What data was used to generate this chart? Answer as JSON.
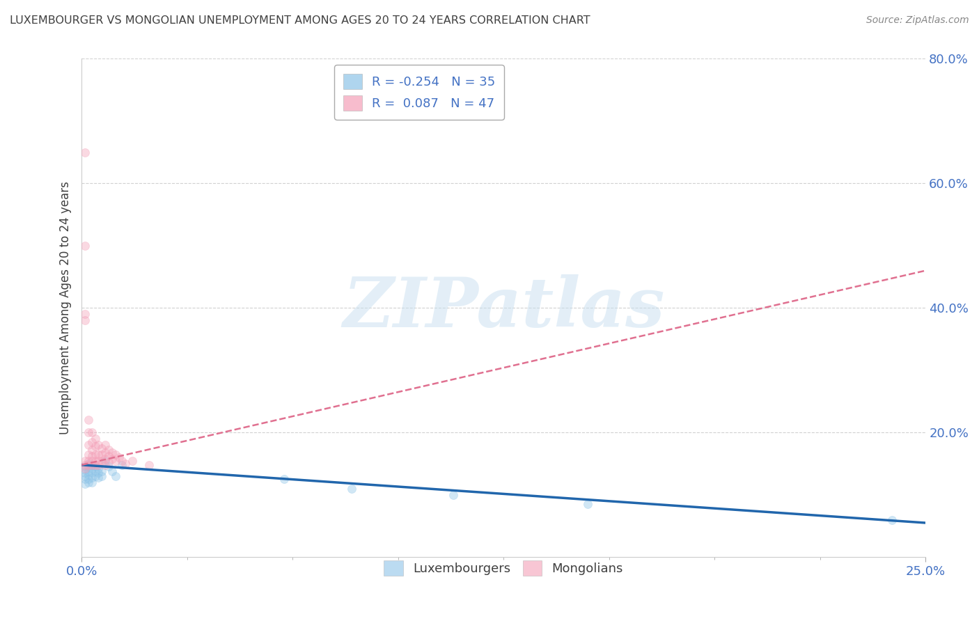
{
  "title": "LUXEMBOURGER VS MONGOLIAN UNEMPLOYMENT AMONG AGES 20 TO 24 YEARS CORRELATION CHART",
  "source": "Source: ZipAtlas.com",
  "ylabel_label": "Unemployment Among Ages 20 to 24 years",
  "legend_entries": [
    {
      "label": "R = -0.254   N = 35",
      "color": "#6baed6"
    },
    {
      "label": "R =  0.087   N = 47",
      "color": "#f768a1"
    }
  ],
  "legend_bottom": [
    "Luxembourgers",
    "Mongolians"
  ],
  "xlim": [
    0.0,
    0.25
  ],
  "ylim": [
    0.0,
    0.8
  ],
  "lux_scatter_x": [
    0.001,
    0.001,
    0.001,
    0.001,
    0.001,
    0.001,
    0.002,
    0.002,
    0.002,
    0.002,
    0.002,
    0.002,
    0.003,
    0.003,
    0.003,
    0.003,
    0.003,
    0.004,
    0.004,
    0.004,
    0.005,
    0.005,
    0.005,
    0.006,
    0.006,
    0.007,
    0.008,
    0.009,
    0.01,
    0.012,
    0.06,
    0.08,
    0.11,
    0.15,
    0.24
  ],
  "lux_scatter_y": [
    0.145,
    0.14,
    0.135,
    0.13,
    0.125,
    0.118,
    0.15,
    0.145,
    0.138,
    0.132,
    0.125,
    0.12,
    0.148,
    0.142,
    0.135,
    0.128,
    0.12,
    0.145,
    0.138,
    0.13,
    0.142,
    0.135,
    0.128,
    0.138,
    0.13,
    0.155,
    0.145,
    0.138,
    0.13,
    0.148,
    0.125,
    0.11,
    0.1,
    0.085,
    0.06
  ],
  "mon_scatter_x": [
    0.001,
    0.001,
    0.001,
    0.001,
    0.001,
    0.001,
    0.001,
    0.002,
    0.002,
    0.002,
    0.002,
    0.002,
    0.002,
    0.003,
    0.003,
    0.003,
    0.003,
    0.003,
    0.003,
    0.004,
    0.004,
    0.004,
    0.004,
    0.004,
    0.005,
    0.005,
    0.005,
    0.005,
    0.006,
    0.006,
    0.006,
    0.007,
    0.007,
    0.007,
    0.007,
    0.008,
    0.008,
    0.008,
    0.009,
    0.009,
    0.01,
    0.01,
    0.011,
    0.012,
    0.013,
    0.015,
    0.02
  ],
  "mon_scatter_y": [
    0.65,
    0.5,
    0.39,
    0.38,
    0.155,
    0.148,
    0.142,
    0.22,
    0.2,
    0.18,
    0.165,
    0.155,
    0.148,
    0.2,
    0.185,
    0.172,
    0.162,
    0.155,
    0.148,
    0.19,
    0.178,
    0.165,
    0.155,
    0.148,
    0.18,
    0.165,
    0.155,
    0.148,
    0.175,
    0.165,
    0.155,
    0.18,
    0.168,
    0.158,
    0.148,
    0.172,
    0.162,
    0.152,
    0.168,
    0.158,
    0.165,
    0.155,
    0.16,
    0.155,
    0.15,
    0.155,
    0.148
  ],
  "lux_line_x0": 0.0,
  "lux_line_y0": 0.148,
  "lux_line_x1": 0.25,
  "lux_line_y1": 0.055,
  "mon_line_x0": 0.0,
  "mon_line_y0": 0.148,
  "mon_line_x1": 0.25,
  "mon_line_y1": 0.46,
  "lux_color": "#8ec4e8",
  "mon_color": "#f4a0b8",
  "lux_line_color": "#2166ac",
  "mon_line_color": "#e07090",
  "watermark_text": "ZIPatlas",
  "watermark_color": "#c8dff0",
  "watermark_alpha": 0.5,
  "background_color": "#ffffff",
  "grid_color": "#cccccc",
  "title_color": "#404040",
  "axis_color": "#4472c4",
  "marker_size": 75,
  "marker_alpha": 0.4,
  "ytick_values": [
    0.2,
    0.4,
    0.6,
    0.8
  ],
  "ytick_labels": [
    "20.0%",
    "40.0%",
    "60.0%",
    "80.0%"
  ],
  "xtick_values": [
    0.0,
    0.25
  ],
  "xtick_labels": [
    "0.0%",
    "25.0%"
  ]
}
